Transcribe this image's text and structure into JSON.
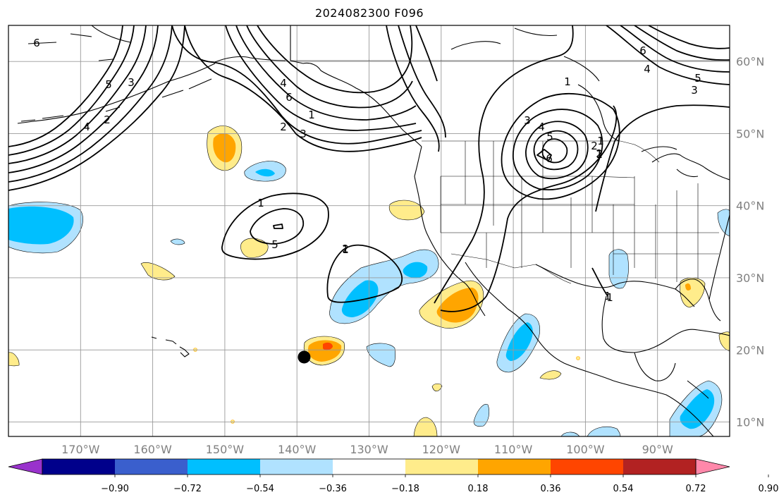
{
  "title": "2024082300 F096",
  "map": {
    "lon_range": [
      -180,
      -80
    ],
    "lat_range": [
      8,
      65
    ],
    "lon_ticks": [
      -170,
      -160,
      -150,
      -140,
      -130,
      -120,
      -110,
      -100,
      -90
    ],
    "lon_labels": [
      "170°W",
      "160°W",
      "150°W",
      "140°W",
      "130°W",
      "120°W",
      "110°W",
      "100°W",
      "90°W"
    ],
    "lat_ticks": [
      10,
      20,
      30,
      40,
      50,
      60
    ],
    "lat_labels": [
      "10°N",
      "20°N",
      "30°N",
      "40°N",
      "50°N",
      "60°N"
    ],
    "grid": true,
    "marker": {
      "name": "black-dot",
      "lon": -139,
      "lat": 19
    }
  },
  "colorbar": {
    "levels": [
      -0.9,
      -0.72,
      -0.54,
      -0.36,
      -0.18,
      0.18,
      0.36,
      0.54,
      0.72,
      0.9
    ],
    "tick_labels": [
      "−0.90",
      "−0.72",
      "−0.54",
      "−0.36",
      "−0.18",
      "0.18",
      "0.36",
      "0.54",
      "0.72",
      "0.90"
    ],
    "colors": [
      "#9932cc",
      "#00008b",
      "#3a5fcd",
      "#00bfff",
      "#b0e2ff",
      "#ffffff",
      "#ffec8b",
      "#ffa500",
      "#ff4500",
      "#b22222",
      "#ff88aa"
    ],
    "extend": "both"
  },
  "contour_labels": [
    "6",
    "5",
    "3",
    "4",
    "2",
    "1",
    "5",
    "4",
    "6",
    "1",
    "2",
    "3",
    "2",
    "1",
    "3",
    "4",
    "5",
    "6",
    "1",
    "2",
    "1",
    "1",
    "6",
    "4",
    "5",
    "3",
    "1",
    "2",
    "1"
  ]
}
